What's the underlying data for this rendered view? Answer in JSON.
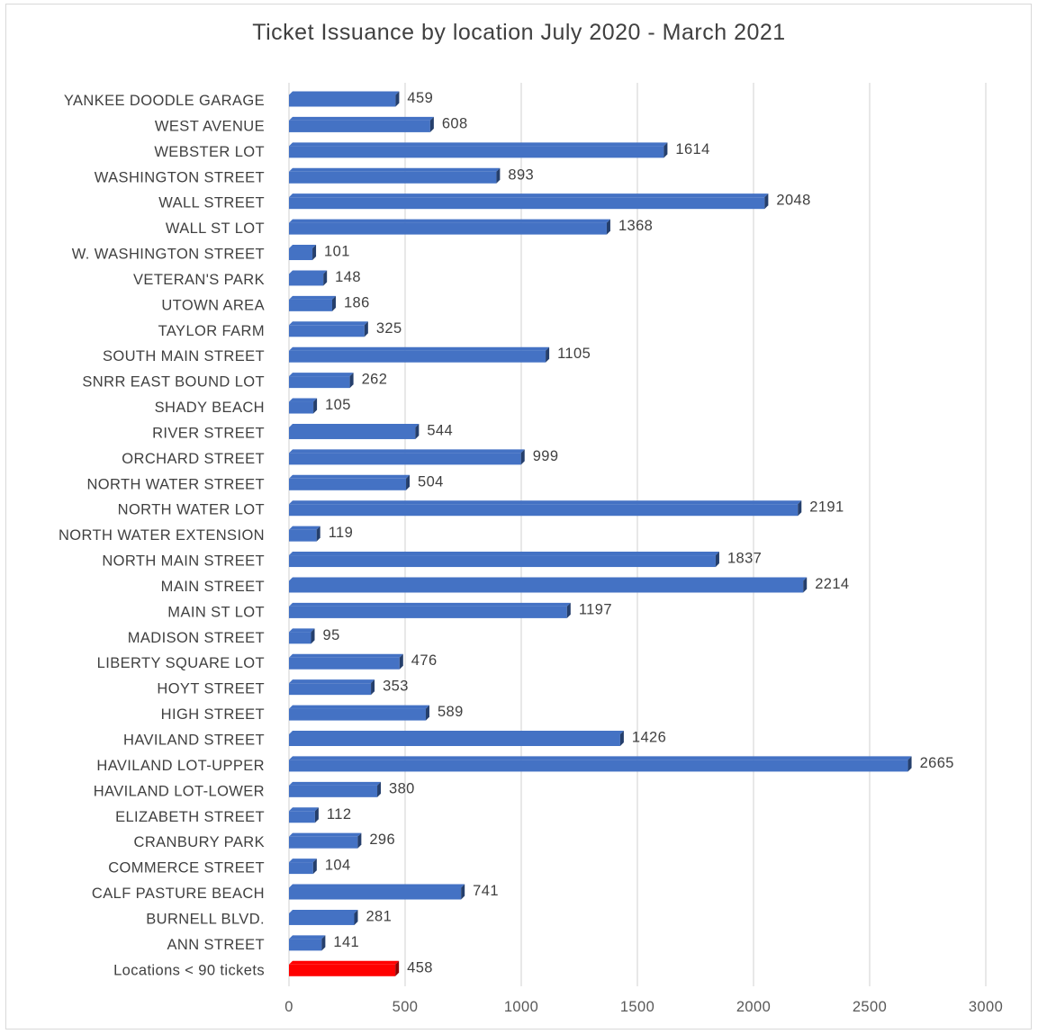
{
  "chart_data": {
    "type": "bar",
    "orientation": "horizontal",
    "title": "Ticket Issuance by location July 2020 - March 2021",
    "categories": [
      "YANKEE DOODLE GARAGE",
      "WEST AVENUE",
      "WEBSTER LOT",
      "WASHINGTON STREET",
      "WALL STREET",
      "WALL ST LOT",
      "W. WASHINGTON STREET",
      "VETERAN'S PARK",
      "UTOWN AREA",
      "TAYLOR FARM",
      "SOUTH MAIN STREET",
      "SNRR EAST BOUND LOT",
      "SHADY BEACH",
      "RIVER STREET",
      "ORCHARD STREET",
      "NORTH WATER STREET",
      "NORTH WATER LOT",
      "NORTH WATER EXTENSION",
      "NORTH MAIN STREET",
      "MAIN STREET",
      "MAIN ST LOT",
      "MADISON STREET",
      "LIBERTY SQUARE LOT",
      "HOYT STREET",
      "HIGH STREET",
      "HAVILAND STREET",
      "HAVILAND LOT-UPPER",
      "HAVILAND LOT-LOWER",
      "ELIZABETH STREET",
      "CRANBURY PARK",
      "COMMERCE STREET",
      "CALF PASTURE BEACH",
      "BURNELL BLVD.",
      "ANN STREET",
      "Locations < 90 tickets"
    ],
    "values": [
      459,
      608,
      1614,
      893,
      2048,
      1368,
      101,
      148,
      186,
      325,
      1105,
      262,
      105,
      544,
      999,
      504,
      2191,
      119,
      1837,
      2214,
      1197,
      95,
      476,
      353,
      589,
      1426,
      2665,
      380,
      112,
      296,
      104,
      741,
      281,
      141,
      458
    ],
    "bar_colors": [
      "#4472c4",
      "#4472c4",
      "#4472c4",
      "#4472c4",
      "#4472c4",
      "#4472c4",
      "#4472c4",
      "#4472c4",
      "#4472c4",
      "#4472c4",
      "#4472c4",
      "#4472c4",
      "#4472c4",
      "#4472c4",
      "#4472c4",
      "#4472c4",
      "#4472c4",
      "#4472c4",
      "#4472c4",
      "#4472c4",
      "#4472c4",
      "#4472c4",
      "#4472c4",
      "#4472c4",
      "#4472c4",
      "#4472c4",
      "#4472c4",
      "#4472c4",
      "#4472c4",
      "#4472c4",
      "#4472c4",
      "#4472c4",
      "#4472c4",
      "#4472c4",
      "#ff0000"
    ],
    "xlim": [
      0,
      3000
    ],
    "x_ticks": [
      "0",
      "500",
      "1000",
      "1500",
      "2000",
      "2500",
      "3000"
    ],
    "x_tick_values": [
      0,
      500,
      1000,
      1500,
      2000,
      2500,
      3000
    ],
    "grid": "vertical",
    "data_labels": true,
    "legend": "none",
    "xlabel": "",
    "ylabel": ""
  }
}
